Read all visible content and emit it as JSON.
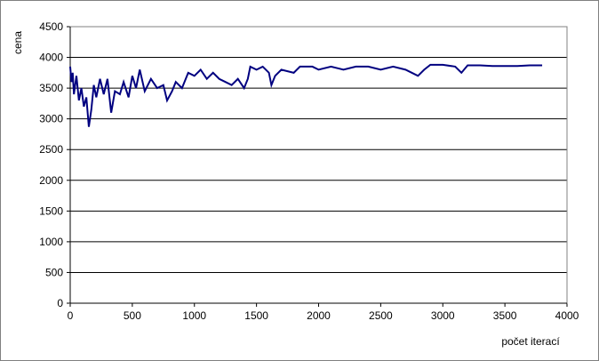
{
  "chart_data": {
    "type": "line",
    "x_label": "počet iterací",
    "y_label": "cena",
    "xlim": [
      0,
      4000
    ],
    "xticks": [
      0,
      500,
      1000,
      1500,
      2000,
      2500,
      3000,
      3500,
      4000
    ],
    "ylim": [
      0,
      4500
    ],
    "yticks": [
      0,
      500,
      1000,
      1500,
      2000,
      2500,
      3000,
      3500,
      4000,
      4500
    ],
    "grid": true,
    "series": [
      {
        "color": "#000080",
        "x": [
          0,
          10,
          20,
          30,
          50,
          70,
          90,
          110,
          130,
          150,
          170,
          190,
          210,
          240,
          270,
          300,
          330,
          360,
          400,
          430,
          470,
          500,
          530,
          560,
          600,
          650,
          700,
          750,
          780,
          820,
          850,
          900,
          950,
          1000,
          1050,
          1100,
          1150,
          1200,
          1250,
          1300,
          1350,
          1400,
          1430,
          1450,
          1500,
          1550,
          1600,
          1620,
          1650,
          1700,
          1800,
          1850,
          1950,
          2000,
          2100,
          2200,
          2300,
          2400,
          2500,
          2600,
          2700,
          2750,
          2800,
          2850,
          2900,
          3000,
          3100,
          3150,
          3200,
          3300,
          3400,
          3500,
          3600,
          3700,
          3800
        ],
        "values": [
          3850,
          3600,
          3750,
          3400,
          3700,
          3300,
          3500,
          3200,
          3350,
          2870,
          3150,
          3550,
          3350,
          3650,
          3400,
          3650,
          3100,
          3450,
          3400,
          3600,
          3350,
          3700,
          3500,
          3800,
          3450,
          3650,
          3500,
          3550,
          3300,
          3450,
          3600,
          3500,
          3750,
          3700,
          3800,
          3650,
          3750,
          3650,
          3600,
          3550,
          3650,
          3500,
          3650,
          3850,
          3800,
          3850,
          3750,
          3550,
          3700,
          3800,
          3750,
          3850,
          3850,
          3800,
          3850,
          3800,
          3850,
          3850,
          3800,
          3850,
          3800,
          3750,
          3700,
          3800,
          3880,
          3880,
          3850,
          3750,
          3870,
          3870,
          3860,
          3860,
          3860,
          3870,
          3870
        ]
      }
    ]
  }
}
